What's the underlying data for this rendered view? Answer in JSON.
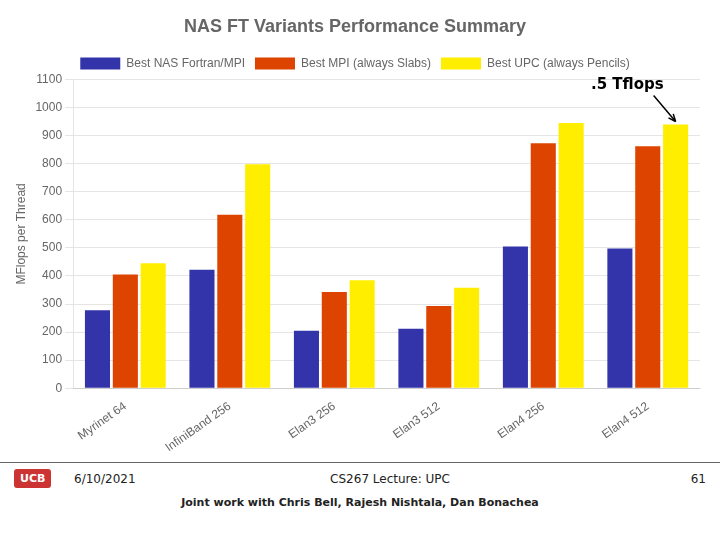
{
  "chart_data": {
    "type": "bar",
    "title": "NAS FT Variants Performance Summary",
    "y_label": "MFlops per Thread",
    "categories": [
      "Myrinet 64",
      "InfiniBand 256",
      "Elan3 256",
      "Elan3 512",
      "Elan4 256",
      "Elan4 512"
    ],
    "series": [
      {
        "name": "Best NAS Fortran/MPI",
        "color": "#3333aa",
        "values": [
          278,
          422,
          205,
          212,
          505,
          498
        ]
      },
      {
        "name": "Best MPI (always Slabs)",
        "color": "#dd4400",
        "values": [
          405,
          618,
          343,
          293,
          873,
          862
        ]
      },
      {
        "name": "Best UPC (always Pencils)",
        "color": "#ffee00",
        "values": [
          445,
          798,
          385,
          358,
          945,
          940
        ]
      }
    ],
    "ylim": [
      0,
      1100
    ],
    "yticks": [
      0,
      100,
      200,
      300,
      400,
      500,
      600,
      700,
      800,
      900,
      1000,
      1100
    ],
    "grid": true,
    "legend": "top",
    "annotations": [
      {
        "text": ".5 Tflops",
        "x": "Elan4 512",
        "y": 940
      },
      {
        "text": "UCB"
      },
      {
        "text": "6/10/2021"
      },
      {
        "text": "CS267 Lecture: UPC"
      },
      {
        "text": "61"
      },
      {
        "text": "Joint work with Chris Bell, Rajesh Nishtala, Dan Bonachea"
      }
    ]
  }
}
